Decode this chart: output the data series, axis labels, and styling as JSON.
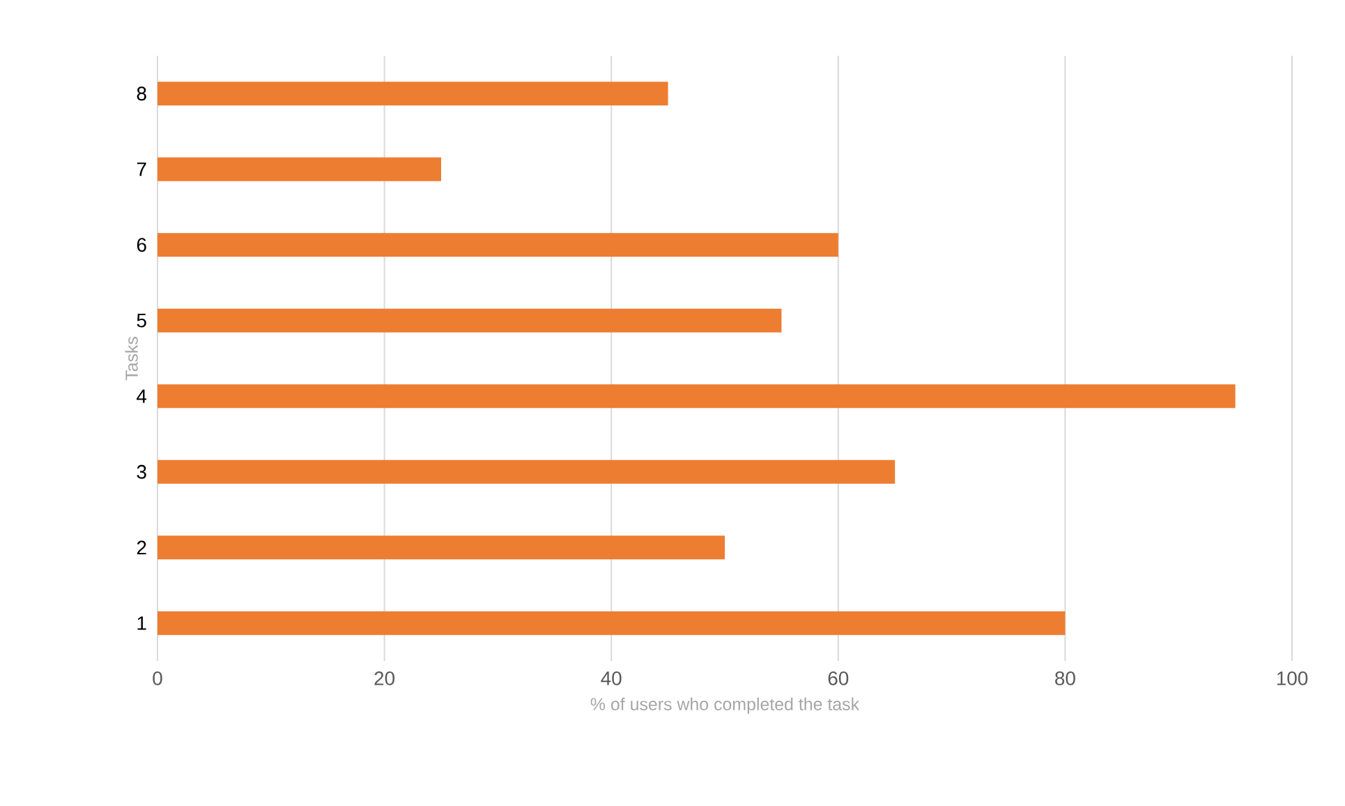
{
  "chart_data": {
    "type": "bar",
    "orientation": "horizontal",
    "xlabel": "% of users who completed the task",
    "ylabel": "Tasks",
    "categories": [
      "8",
      "7",
      "6",
      "5",
      "4",
      "3",
      "2",
      "1"
    ],
    "values": [
      45,
      25,
      60,
      55,
      95,
      65,
      50,
      80
    ],
    "color": "#ed7d31",
    "xlim": [
      0,
      100
    ],
    "xticks": [
      0,
      20,
      40,
      60,
      80,
      100
    ],
    "grid": "x"
  }
}
